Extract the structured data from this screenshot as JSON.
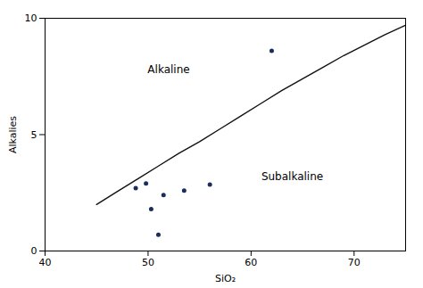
{
  "chart_data": {
    "type": "scatter",
    "xlabel": "SiO₂",
    "ylabel": "Alkalies",
    "xlim": [
      40,
      75
    ],
    "ylim": [
      0,
      10
    ],
    "xticks": [
      40,
      50,
      60,
      70
    ],
    "yticks": [
      0,
      5,
      10
    ],
    "grid": false,
    "series": [
      {
        "type": "line",
        "color": "#111111",
        "x": [
          45.0,
          47.0,
          49.0,
          51.0,
          53.0,
          55.0,
          57.0,
          59.0,
          61.0,
          63.0,
          65.0,
          67.0,
          69.0,
          71.0,
          73.0,
          75.0
        ],
        "values": [
          2.0,
          2.55,
          3.1,
          3.65,
          4.2,
          4.7,
          5.25,
          5.8,
          6.35,
          6.9,
          7.4,
          7.9,
          8.4,
          8.85,
          9.3,
          9.7
        ]
      },
      {
        "type": "scatter",
        "color": "#1a2e5a",
        "x": [
          48.8,
          49.8,
          50.3,
          51.0,
          51.5,
          53.5,
          56.0,
          62.0
        ],
        "values": [
          2.7,
          2.9,
          1.8,
          0.7,
          2.4,
          2.6,
          2.85,
          8.6
        ]
      }
    ],
    "annotations": [
      {
        "text": "Alkaline",
        "x": 52,
        "y": 7.8
      },
      {
        "text": "Subalkaline",
        "x": 64,
        "y": 3.2
      }
    ]
  }
}
